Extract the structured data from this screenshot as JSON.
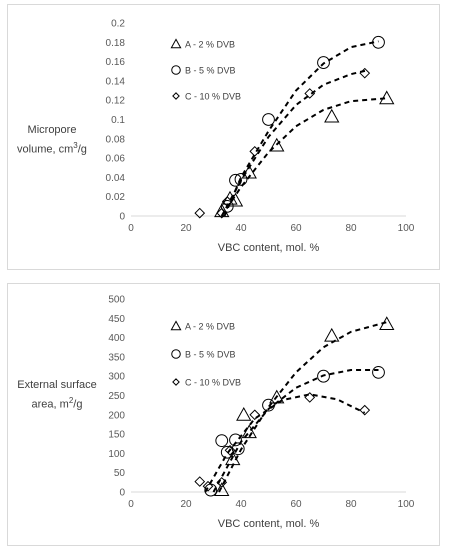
{
  "chart_data": [
    {
      "type": "scatter",
      "xlabel": "VBC content, mol. %",
      "ylabel": {
        "line1": "Micropore",
        "line2_prefix": "volume,  cm",
        "sup": "3",
        "line2_suffix": "/g"
      },
      "xlim": [
        0,
        100
      ],
      "ylim": [
        0,
        0.2
      ],
      "x_ticks": [
        "0",
        "20",
        "40",
        "60",
        "80",
        "100"
      ],
      "y_ticks": [
        "0",
        "0.02",
        "0.04",
        "0.06",
        "0.08",
        "0.1",
        "0.12",
        "0.14",
        "0.16",
        "0.18",
        "0.2"
      ],
      "grid": false,
      "legend_position": "top-left",
      "series": [
        {
          "name": "A - 2 % DVB",
          "marker": "triangle",
          "points": [
            [
              33,
              0.005
            ],
            [
              36,
              0.018
            ],
            [
              38,
              0.016
            ],
            [
              43,
              0.045
            ],
            [
              53,
              0.073
            ],
            [
              73,
              0.103
            ],
            [
              93,
              0.122
            ]
          ],
          "trend": [
            [
              33,
              0.0
            ],
            [
              40,
              0.03
            ],
            [
              50,
              0.066
            ],
            [
              60,
              0.093
            ],
            [
              70,
              0.11
            ],
            [
              80,
              0.119
            ],
            [
              93,
              0.122
            ]
          ]
        },
        {
          "name": "B - 5 % DVB",
          "marker": "circle",
          "points": [
            [
              35,
              0.01
            ],
            [
              38,
              0.037
            ],
            [
              40,
              0.038
            ],
            [
              50,
              0.1
            ],
            [
              70,
              0.159
            ],
            [
              90,
              0.18
            ]
          ],
          "trend": [
            [
              34,
              0.0
            ],
            [
              40,
              0.04
            ],
            [
              50,
              0.088
            ],
            [
              60,
              0.13
            ],
            [
              70,
              0.158
            ],
            [
              80,
              0.175
            ],
            [
              90,
              0.181
            ]
          ]
        },
        {
          "name": "C - 10 % DVB",
          "marker": "diamond",
          "points": [
            [
              25,
              0.003
            ],
            [
              33,
              0.003
            ],
            [
              35,
              0.015
            ],
            [
              45,
              0.067
            ],
            [
              65,
              0.127
            ],
            [
              85,
              0.148
            ]
          ],
          "trend": [
            [
              33,
              0.0
            ],
            [
              40,
              0.037
            ],
            [
              50,
              0.082
            ],
            [
              60,
              0.115
            ],
            [
              70,
              0.136
            ],
            [
              80,
              0.147
            ],
            [
              86,
              0.151
            ]
          ]
        }
      ]
    },
    {
      "type": "scatter",
      "xlabel": "VBC content, mol. %",
      "ylabel": {
        "line1": "External surface",
        "line2_prefix": "area,  m",
        "sup": "2",
        "line2_suffix": "/g"
      },
      "xlim": [
        0,
        100
      ],
      "ylim": [
        0,
        500
      ],
      "x_ticks": [
        "0",
        "20",
        "40",
        "60",
        "80",
        "100"
      ],
      "y_ticks": [
        "0",
        "50",
        "100",
        "150",
        "200",
        "250",
        "300",
        "350",
        "400",
        "450",
        "500"
      ],
      "grid": false,
      "legend_position": "top-left",
      "series": [
        {
          "name": "A - 2 % DVB",
          "marker": "triangle",
          "points": [
            [
              33,
              5
            ],
            [
              37,
              85
            ],
            [
              41,
              200
            ],
            [
              43,
              155
            ],
            [
              53,
              245
            ],
            [
              73,
              405
            ],
            [
              93,
              435
            ]
          ],
          "trend": [
            [
              32,
              0
            ],
            [
              40,
              110
            ],
            [
              50,
              220
            ],
            [
              60,
              310
            ],
            [
              70,
              375
            ],
            [
              80,
              415
            ],
            [
              93,
              440
            ]
          ]
        },
        {
          "name": "B - 5 % DVB",
          "marker": "circle",
          "points": [
            [
              29,
              5
            ],
            [
              33,
              133
            ],
            [
              35,
              103
            ],
            [
              38,
              135
            ],
            [
              39,
              112
            ],
            [
              50,
              225
            ],
            [
              70,
              300
            ],
            [
              90,
              310
            ]
          ],
          "trend": [
            [
              30,
              0
            ],
            [
              40,
              130
            ],
            [
              50,
              215
            ],
            [
              60,
              270
            ],
            [
              70,
              302
            ],
            [
              80,
              316
            ],
            [
              90,
              316
            ]
          ]
        },
        {
          "name": "C - 10 % DVB",
          "marker": "diamond",
          "points": [
            [
              25,
              27
            ],
            [
              28,
              15
            ],
            [
              33,
              25
            ],
            [
              36,
              108
            ],
            [
              45,
              200
            ],
            [
              65,
              245
            ],
            [
              85,
              212
            ]
          ],
          "trend": [
            [
              27,
              0
            ],
            [
              35,
              100
            ],
            [
              45,
              190
            ],
            [
              55,
              238
            ],
            [
              65,
              253
            ],
            [
              75,
              240
            ],
            [
              85,
              205
            ]
          ]
        }
      ]
    }
  ]
}
